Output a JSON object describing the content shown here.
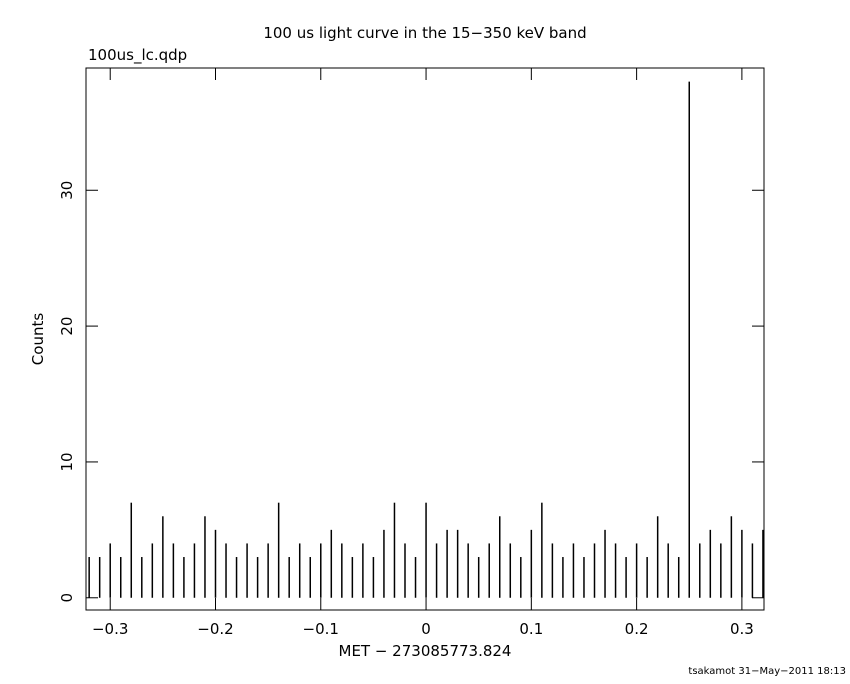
{
  "chart_data": {
    "type": "impulse",
    "title": "100 us light curve in the 15−350 keV band",
    "subtitle": "100us_lc.qdp",
    "xlabel": "MET − 273085773.824",
    "ylabel": "Counts",
    "footer": "tsakamot 31−May−2011 18:13",
    "color": "#000000",
    "x": [
      -0.32,
      -0.31,
      -0.3,
      -0.29,
      -0.28,
      -0.27,
      -0.26,
      -0.25,
      -0.24,
      -0.23,
      -0.22,
      -0.21,
      -0.2,
      -0.19,
      -0.18,
      -0.17,
      -0.16,
      -0.15,
      -0.14,
      -0.13,
      -0.12,
      -0.11,
      -0.1,
      -0.09,
      -0.08,
      -0.07,
      -0.06,
      -0.05,
      -0.04,
      -0.03,
      -0.02,
      -0.01,
      0.0,
      0.01,
      0.02,
      0.03,
      0.04,
      0.05,
      0.06,
      0.07,
      0.08,
      0.09,
      0.1,
      0.11,
      0.12,
      0.13,
      0.14,
      0.15,
      0.16,
      0.17,
      0.18,
      0.19,
      0.2,
      0.21,
      0.22,
      0.23,
      0.24,
      0.25,
      0.26,
      0.27,
      0.28,
      0.29,
      0.3,
      0.31,
      0.32
    ],
    "values": [
      3,
      3,
      4,
      3,
      7,
      3,
      4,
      6,
      4,
      3,
      4,
      6,
      5,
      4,
      3,
      4,
      3,
      4,
      7,
      3,
      4,
      3,
      4,
      5,
      4,
      3,
      4,
      3,
      5,
      7,
      4,
      3,
      7,
      4,
      5,
      5,
      4,
      3,
      4,
      6,
      4,
      3,
      5,
      7,
      4,
      3,
      4,
      3,
      4,
      5,
      4,
      3,
      4,
      3,
      6,
      4,
      3,
      38,
      4,
      5,
      4,
      6,
      5,
      4,
      5
    ],
    "xlim": [
      -0.323,
      0.321
    ],
    "ylim": [
      -0.9,
      39
    ],
    "xticks": [
      {
        "value": -0.3,
        "label": "−0.3"
      },
      {
        "value": -0.2,
        "label": "−0.2"
      },
      {
        "value": -0.1,
        "label": "−0.1"
      },
      0,
      0.1,
      0.2,
      0.3
    ],
    "yticks": [
      0,
      10,
      20,
      30
    ]
  }
}
